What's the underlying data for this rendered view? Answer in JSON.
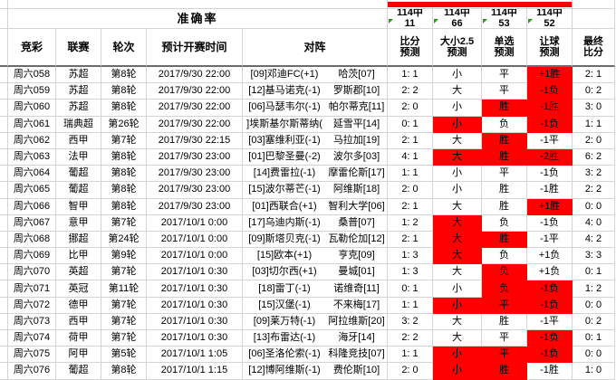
{
  "header": {
    "accuracy_label": "准确率",
    "columns": {
      "jingcai": "竞彩",
      "league": "联赛",
      "round": "轮次",
      "time": "预计开赛时间",
      "match": "对阵"
    },
    "pred_columns": [
      {
        "l1": "比分",
        "l2": "预测"
      },
      {
        "l1": "大小2.5",
        "l2": "预测"
      },
      {
        "l1": "单选",
        "l2": "预测"
      },
      {
        "l1": "让球",
        "l2": "预测"
      },
      {
        "l1": "最终",
        "l2": "比分"
      }
    ]
  },
  "accuracy": {
    "stats": [
      {
        "line1": "114中",
        "line2": "11"
      },
      {
        "line1": "114中",
        "line2": "66"
      },
      {
        "line1": "114中",
        "line2": "53"
      },
      {
        "line1": "114中",
        "line2": "52"
      }
    ]
  },
  "colors": {
    "highlight_red": "#ff0000",
    "marker_green": "#18a303",
    "grid_line": "#d4d4d4"
  },
  "rows": [
    {
      "id": "周六058",
      "league": "苏超",
      "round": "第8轮",
      "time": "2017/9/30 22:00",
      "home": "[09]邓迪FC(+1)",
      "away": "哈茨[07]",
      "score": "1: 1",
      "ou": "小",
      "ou_red": false,
      "pick": "平",
      "pick_red": false,
      "handicap": "+1胜",
      "handicap_red": true,
      "final": "2: 1"
    },
    {
      "id": "周六059",
      "league": "苏超",
      "round": "第8轮",
      "time": "2017/9/30 22:00",
      "home": "[12]基马诺克(-1)",
      "away": "罗斯郡[10]",
      "score": "2: 2",
      "ou": "大",
      "ou_red": false,
      "pick": "平",
      "pick_red": false,
      "handicap": "-1负",
      "handicap_red": true,
      "final": "0: 2"
    },
    {
      "id": "周六060",
      "league": "苏超",
      "round": "第8轮",
      "time": "2017/9/30 22:00",
      "home": "[06]马瑟韦尔(-1)",
      "away": "帕尔蒂克[11]",
      "score": "2: 0",
      "ou": "小",
      "ou_red": false,
      "pick": "胜",
      "pick_red": true,
      "handicap": "-1胜",
      "handicap_red": true,
      "final": "3: 0"
    },
    {
      "id": "周六061",
      "league": "瑞典超",
      "round": "第26轮",
      "time": "2017/9/30 22:00",
      "home": "]埃斯基尔斯蒂纳(",
      "away": "延雪平[14]",
      "score": "0: 1",
      "ou": "小",
      "ou_red": true,
      "pick": "负",
      "pick_red": false,
      "handicap": "-1负",
      "handicap_red": true,
      "final": "1: 1"
    },
    {
      "id": "周六062",
      "league": "西甲",
      "round": "第7轮",
      "time": "2017/9/30 22:15",
      "home": "[03]塞维利亚(-1)",
      "away": "马拉加[19]",
      "score": "2: 1",
      "ou": "大",
      "ou_red": false,
      "pick": "胜",
      "pick_red": true,
      "handicap": "-1平",
      "handicap_red": false,
      "final": "2: 0"
    },
    {
      "id": "周六063",
      "league": "法甲",
      "round": "第8轮",
      "time": "2017/9/30 23:00",
      "home": "[01]巴黎圣曼(-2)",
      "away": "波尔多[03]",
      "score": "4: 1",
      "ou": "大",
      "ou_red": true,
      "pick": "胜",
      "pick_red": true,
      "handicap": "-2胜",
      "handicap_red": true,
      "final": "6: 2"
    },
    {
      "id": "周六064",
      "league": "葡超",
      "round": "第8轮",
      "time": "2017/9/30 23:00",
      "home": "[14]费雷拉(-1)",
      "away": "摩雷伦斯[17]",
      "score": "1: 1",
      "ou": "小",
      "ou_red": false,
      "pick": "平",
      "pick_red": false,
      "handicap": "-1负",
      "handicap_red": false,
      "final": "3: 2"
    },
    {
      "id": "周六065",
      "league": "葡超",
      "round": "第8轮",
      "time": "2017/9/30 23:00",
      "home": "[15]波尔蒂芒(-1)",
      "away": "阿维斯[18]",
      "score": "2: 0",
      "ou": "小",
      "ou_red": false,
      "pick": "胜",
      "pick_red": false,
      "handicap": "-1胜",
      "handicap_red": false,
      "final": "2: 2"
    },
    {
      "id": "周六066",
      "league": "智甲",
      "round": "第8轮",
      "time": "2017/9/30 23:00",
      "home": "[01]西联合(+1)",
      "away": "智利大学[06]",
      "score": "2: 1",
      "ou": "大",
      "ou_red": false,
      "pick": "胜",
      "pick_red": false,
      "handicap": "+1胜",
      "handicap_red": true,
      "final": "0: 0"
    },
    {
      "id": "周六067",
      "league": "意甲",
      "round": "第7轮",
      "time": "2017/10/1 0:00",
      "home": "[17]乌迪内斯(-1)",
      "away": "桑普[07]",
      "score": "1: 2",
      "ou": "大",
      "ou_red": true,
      "pick": "负",
      "pick_red": false,
      "handicap": "-1负",
      "handicap_red": false,
      "final": "4: 0"
    },
    {
      "id": "周六068",
      "league": "挪超",
      "round": "第24轮",
      "time": "2017/10/1 0:00",
      "home": "[09]斯塔贝克(-1)",
      "away": "瓦勒伦加[12]",
      "score": "2: 1",
      "ou": "大",
      "ou_red": true,
      "pick": "胜",
      "pick_red": true,
      "handicap": "-1平",
      "handicap_red": false,
      "final": "4: 2"
    },
    {
      "id": "周六069",
      "league": "比甲",
      "round": "第9轮",
      "time": "2017/10/1 0:00",
      "home": "[15]欧本(+1)",
      "away": "亨克[09]",
      "score": "1: 3",
      "ou": "大",
      "ou_red": true,
      "pick": "负",
      "pick_red": false,
      "handicap": "+1负",
      "handicap_red": false,
      "final": "3: 3"
    },
    {
      "id": "周六070",
      "league": "英超",
      "round": "第7轮",
      "time": "2017/10/1 0:30",
      "home": "[03]切尔西(+1)",
      "away": "曼城[01]",
      "score": "1: 3",
      "ou": "大",
      "ou_red": false,
      "pick": "负",
      "pick_red": true,
      "handicap": "+1负",
      "handicap_red": false,
      "final": "0: 1"
    },
    {
      "id": "周六071",
      "league": "英冠",
      "round": "第11轮",
      "time": "2017/10/1 0:30",
      "home": "[18]雷丁(-1)",
      "away": "诺维奇[11]",
      "score": "0: 1",
      "ou": "小",
      "ou_red": false,
      "pick": "负",
      "pick_red": true,
      "handicap": "-1负",
      "handicap_red": true,
      "final": "1: 2"
    },
    {
      "id": "周六072",
      "league": "德甲",
      "round": "第7轮",
      "time": "2017/10/1 0:30",
      "home": "[15]汉堡(-1)",
      "away": "不来梅[17]",
      "score": "1: 1",
      "ou": "小",
      "ou_red": true,
      "pick": "平",
      "pick_red": true,
      "handicap": "-1负",
      "handicap_red": true,
      "final": "0: 0"
    },
    {
      "id": "周六073",
      "league": "西甲",
      "round": "第7轮",
      "time": "2017/10/1 0:30",
      "home": "[09]莱万特(-1)",
      "away": "阿拉维斯[20]",
      "score": "3: 2",
      "ou": "大",
      "ou_red": false,
      "pick": "胜",
      "pick_red": false,
      "handicap": "-1平",
      "handicap_red": false,
      "final": "0: 2"
    },
    {
      "id": "周六074",
      "league": "荷甲",
      "round": "第7轮",
      "time": "2017/10/1 0:30",
      "home": "[13]布雷达(-1)",
      "away": "海牙[14]",
      "score": "2: 2",
      "ou": "大",
      "ou_red": false,
      "pick": "平",
      "pick_red": false,
      "handicap": "-1负",
      "handicap_red": true,
      "final": "0: 1"
    },
    {
      "id": "周六075",
      "league": "阿甲",
      "round": "第5轮",
      "time": "2017/10/1 1:05",
      "home": "[06]圣洛伦索(-1)",
      "away": "科隆竞技[07]",
      "score": "1: 1",
      "ou": "小",
      "ou_red": true,
      "pick": "平",
      "pick_red": true,
      "handicap": "-1负",
      "handicap_red": true,
      "final": "0: 0"
    },
    {
      "id": "周六076",
      "league": "葡超",
      "round": "第8轮",
      "time": "2017/10/1 1:15",
      "home": "[12]博阿维斯(-1)",
      "away": "费伦斯[10]",
      "score": "2: 0",
      "ou": "小",
      "ou_red": true,
      "pick": "胜",
      "pick_red": true,
      "handicap": "-1胜",
      "handicap_red": false,
      "final": "1: 0"
    }
  ]
}
